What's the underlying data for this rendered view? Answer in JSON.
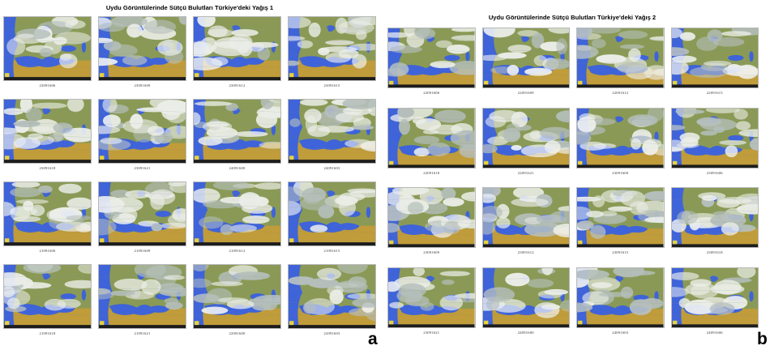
{
  "figure": {
    "label_a": "a",
    "label_b": "b",
    "colors": {
      "sea": "#3f63d8",
      "land_warm": "#c09c3a",
      "land_green": "#8a9a56",
      "cloud": "#f3f5f4",
      "cloud_shadow": "#b9c2c4",
      "sun_badge": "#e8d23a"
    }
  },
  "panels": [
    {
      "id": "a",
      "title": "Uydu Görüntülerinde Sütçü Bulutları Türkiye'deki Yağış 1",
      "captions": [
        "23091606",
        "23091609",
        "23091612",
        "23091615",
        "23091618",
        "23091621",
        "24091600",
        "24091603",
        "21091606",
        "21091609",
        "21091612",
        "21091615",
        "21091618",
        "21091621",
        "22091600",
        "22091603"
      ]
    },
    {
      "id": "b",
      "title": "Uydu Görüntülerinde Sütçü Bulutları Türkiye'deki Yağış 2",
      "captions": [
        "22091606",
        "22091609",
        "22091612",
        "22091615",
        "22091618",
        "22091621",
        "23091600",
        "23091606",
        "23091609",
        "23091612",
        "23091615",
        "23091618",
        "23091621",
        "24091600",
        "24091603",
        "24091606"
      ]
    }
  ]
}
